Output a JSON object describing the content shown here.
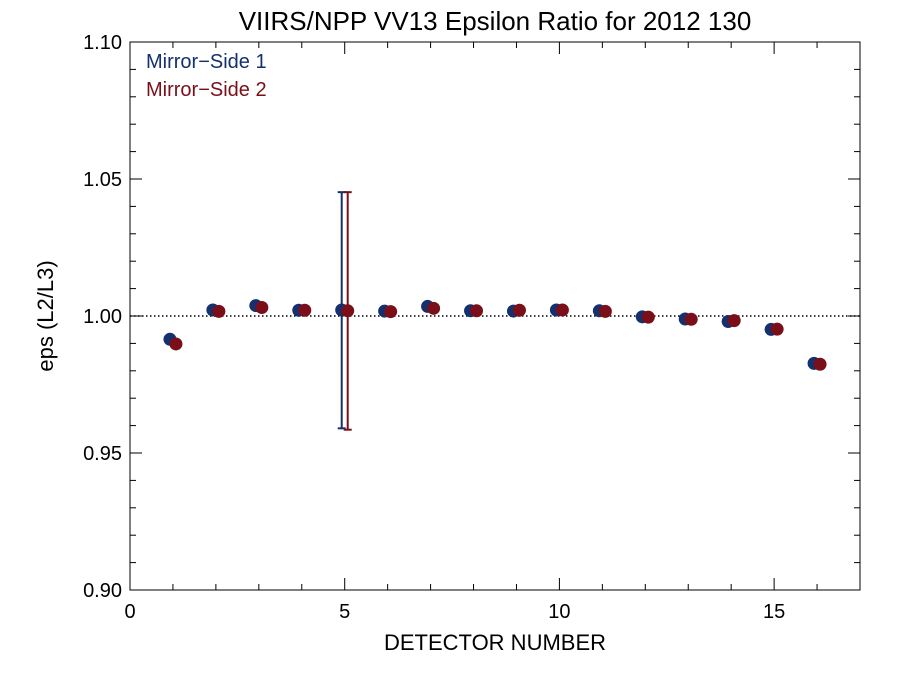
{
  "chart_data": {
    "type": "scatter",
    "title": "VIIRS/NPP VV13 Epsilon Ratio for 2012 130",
    "xlabel": "DETECTOR NUMBER",
    "ylabel": "eps (L2/L3)",
    "xlim": [
      0,
      17
    ],
    "ylim": [
      0.9,
      1.1
    ],
    "xticks": [
      0,
      5,
      10,
      15
    ],
    "xtick_labels": [
      "0",
      "5",
      "10",
      "15"
    ],
    "yticks": [
      0.9,
      0.95,
      1.0,
      1.05,
      1.1
    ],
    "ytick_labels": [
      "0.90",
      "0.95",
      "1.00",
      "1.05",
      "1.10"
    ],
    "reference_line": {
      "y": 1.0,
      "style": "dotted"
    },
    "legend_position": "top-left",
    "series": [
      {
        "name": "Mirror−Side 1",
        "color": "#14306e",
        "x": [
          1,
          2,
          3,
          4,
          5,
          6,
          7,
          8,
          9,
          10,
          11,
          12,
          13,
          14,
          15,
          16
        ],
        "y": [
          0.9915,
          1.0022,
          1.0038,
          1.0021,
          1.0022,
          1.0018,
          1.0035,
          1.0019,
          1.0018,
          1.0022,
          1.0019,
          0.9997,
          0.9989,
          0.998,
          0.9951,
          0.9827
        ],
        "error_bars": [
          {
            "x": 5,
            "low": 0.959,
            "high": 1.0452
          }
        ]
      },
      {
        "name": "Mirror−Side 2",
        "color": "#7a0f1a",
        "x": [
          1,
          2,
          3,
          4,
          5,
          6,
          7,
          8,
          9,
          10,
          11,
          12,
          13,
          14,
          15,
          16
        ],
        "y": [
          0.9898,
          1.0017,
          1.0031,
          1.0021,
          1.0019,
          1.0016,
          1.0028,
          1.0019,
          1.0021,
          1.0022,
          1.0017,
          0.9996,
          0.9988,
          0.9983,
          0.9952,
          0.9824
        ],
        "error_bars": [
          {
            "x": 5,
            "low": 0.9585,
            "high": 1.0452
          }
        ]
      }
    ]
  }
}
